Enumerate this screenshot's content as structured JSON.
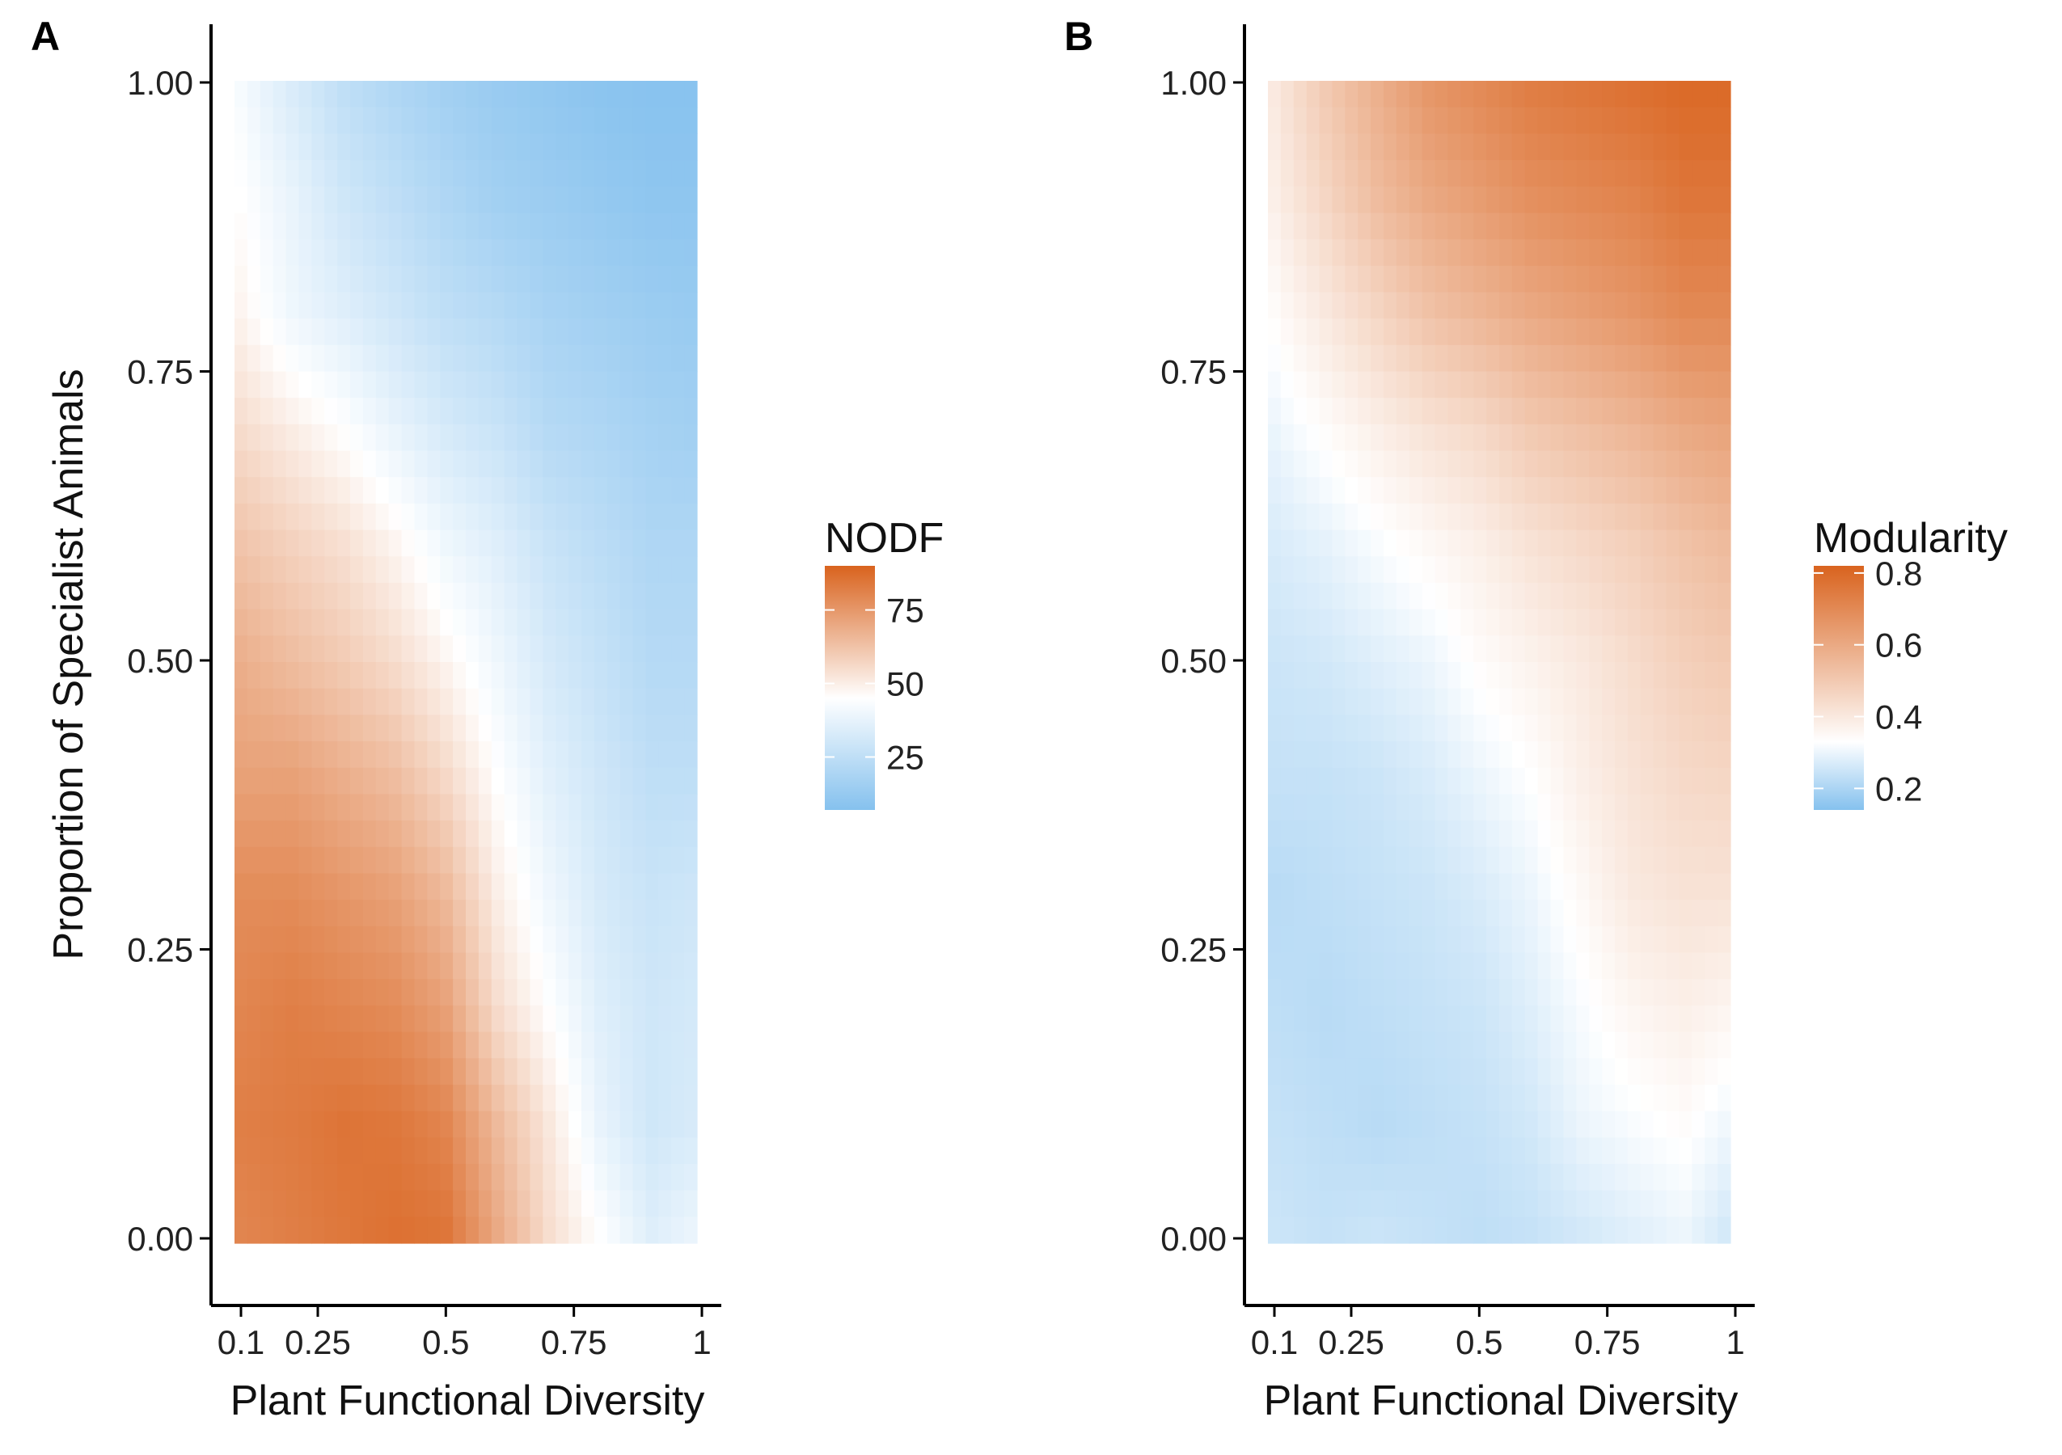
{
  "colors": {
    "low": "#85C1EE",
    "mid": "#FFFFFF",
    "high": "#D9631E",
    "axis": "#000000"
  },
  "chart_data": [
    {
      "type": "heatmap",
      "panel_label": "A",
      "xlabel": "Plant Functional Diversity",
      "ylabel": "Proportion of Specialist Animals",
      "x_ticks": [
        "0.1",
        "0.25",
        "0.5",
        "0.75",
        "1"
      ],
      "x_tick_values": [
        0.1,
        0.25,
        0.5,
        0.75,
        1
      ],
      "y_ticks": [
        "0.00",
        "0.25",
        "0.50",
        "0.75",
        "1.00"
      ],
      "y_tick_values": [
        0,
        0.25,
        0.5,
        0.75,
        1
      ],
      "xlim": [
        0.1,
        1
      ],
      "ylim": [
        0,
        1
      ],
      "legend": {
        "title": "NODF",
        "ticks": [
          "75",
          "50",
          "25"
        ],
        "tick_values": [
          75,
          50,
          25
        ],
        "range": [
          7,
          90
        ],
        "midpoint": 45,
        "placement": "right"
      },
      "grid": false,
      "x": [
        0.1,
        0.2,
        0.3,
        0.4,
        0.5,
        0.6,
        0.7,
        0.8,
        0.9,
        1.0
      ],
      "y": [
        0.0,
        0.1,
        0.2,
        0.3,
        0.4,
        0.5,
        0.6,
        0.7,
        0.8,
        0.9,
        1.0
      ],
      "values": [
        [
          80,
          82,
          84,
          86,
          85,
          70,
          55,
          45,
          35,
          40
        ],
        [
          82,
          83,
          85,
          84,
          80,
          65,
          52,
          38,
          30,
          33
        ],
        [
          80,
          82,
          80,
          78,
          72,
          55,
          45,
          35,
          30,
          32
        ],
        [
          78,
          78,
          75,
          72,
          65,
          50,
          40,
          32,
          28,
          30
        ],
        [
          72,
          72,
          68,
          64,
          56,
          45,
          36,
          30,
          25,
          25
        ],
        [
          68,
          64,
          60,
          55,
          48,
          40,
          32,
          27,
          22,
          22
        ],
        [
          62,
          58,
          54,
          48,
          40,
          35,
          28,
          24,
          20,
          20
        ],
        [
          55,
          50,
          45,
          38,
          32,
          28,
          22,
          20,
          17,
          16
        ],
        [
          48,
          40,
          35,
          30,
          25,
          22,
          18,
          16,
          14,
          13
        ],
        [
          45,
          38,
          30,
          25,
          20,
          16,
          14,
          12,
          10,
          10
        ],
        [
          42,
          33,
          25,
          20,
          16,
          13,
          11,
          9,
          8,
          8
        ]
      ]
    },
    {
      "type": "heatmap",
      "panel_label": "B",
      "xlabel": "Plant Functional Diversity",
      "ylabel": "",
      "x_ticks": [
        "0.1",
        "0.25",
        "0.5",
        "0.75",
        "1"
      ],
      "x_tick_values": [
        0.1,
        0.25,
        0.5,
        0.75,
        1
      ],
      "y_ticks": [
        "0.00",
        "0.25",
        "0.50",
        "0.75",
        "1.00"
      ],
      "y_tick_values": [
        0,
        0.25,
        0.5,
        0.75,
        1
      ],
      "xlim": [
        0.1,
        1
      ],
      "ylim": [
        0,
        1
      ],
      "legend": {
        "title": "Modularity",
        "ticks": [
          "0.8",
          "0.6",
          "0.4",
          "0.2"
        ],
        "tick_values": [
          0.8,
          0.6,
          0.4,
          0.2
        ],
        "range": [
          0.14,
          0.82
        ],
        "midpoint": 0.33,
        "placement": "right"
      },
      "grid": false,
      "x": [
        0.1,
        0.2,
        0.3,
        0.4,
        0.5,
        0.6,
        0.7,
        0.8,
        0.9,
        1.0
      ],
      "y": [
        0.0,
        0.1,
        0.2,
        0.3,
        0.4,
        0.5,
        0.6,
        0.7,
        0.8,
        0.9,
        1.0
      ],
      "values": [
        [
          0.25,
          0.24,
          0.25,
          0.24,
          0.23,
          0.24,
          0.26,
          0.28,
          0.3,
          0.25
        ],
        [
          0.24,
          0.23,
          0.22,
          0.23,
          0.24,
          0.26,
          0.3,
          0.32,
          0.34,
          0.3
        ],
        [
          0.23,
          0.22,
          0.23,
          0.24,
          0.25,
          0.28,
          0.32,
          0.36,
          0.38,
          0.36
        ],
        [
          0.22,
          0.23,
          0.24,
          0.25,
          0.27,
          0.3,
          0.35,
          0.4,
          0.42,
          0.42
        ],
        [
          0.24,
          0.24,
          0.25,
          0.27,
          0.3,
          0.33,
          0.38,
          0.42,
          0.45,
          0.46
        ],
        [
          0.25,
          0.26,
          0.28,
          0.3,
          0.34,
          0.37,
          0.4,
          0.44,
          0.48,
          0.5
        ],
        [
          0.27,
          0.29,
          0.32,
          0.35,
          0.38,
          0.42,
          0.45,
          0.48,
          0.52,
          0.55
        ],
        [
          0.3,
          0.34,
          0.38,
          0.42,
          0.45,
          0.5,
          0.53,
          0.56,
          0.6,
          0.62
        ],
        [
          0.34,
          0.4,
          0.46,
          0.52,
          0.56,
          0.6,
          0.63,
          0.66,
          0.7,
          0.7
        ],
        [
          0.38,
          0.46,
          0.54,
          0.6,
          0.64,
          0.68,
          0.7,
          0.72,
          0.76,
          0.76
        ],
        [
          0.4,
          0.5,
          0.58,
          0.66,
          0.7,
          0.74,
          0.76,
          0.78,
          0.8,
          0.8
        ]
      ]
    }
  ]
}
